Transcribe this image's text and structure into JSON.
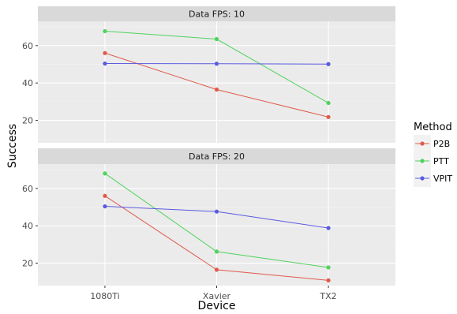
{
  "chart_data": {
    "type": "line",
    "xlabel": "Device",
    "ylabel": "Success",
    "categories": [
      "1080Ti",
      "Xavier",
      "TX2"
    ],
    "y_ticks": [
      20,
      40,
      60
    ],
    "ylim": [
      8,
      73
    ],
    "grid": true,
    "legend": {
      "title": "Method",
      "placement": "right"
    },
    "colors": {
      "P2B": "#e05a4b",
      "PTT": "#4fd35c",
      "VPIT": "#5a5ae0"
    },
    "facets": [
      {
        "label": "Data FPS: 10",
        "series": [
          {
            "name": "P2B",
            "values": [
              56.0,
              36.5,
              21.8
            ]
          },
          {
            "name": "PTT",
            "values": [
              67.7,
              63.5,
              29.3
            ]
          },
          {
            "name": "VPIT",
            "values": [
              50.4,
              50.3,
              50.1
            ]
          }
        ]
      },
      {
        "label": "Data FPS: 20",
        "series": [
          {
            "name": "P2B",
            "values": [
              56.0,
              16.5,
              10.8
            ]
          },
          {
            "name": "PTT",
            "values": [
              68.0,
              26.2,
              17.7
            ]
          },
          {
            "name": "VPIT",
            "values": [
              50.4,
              47.6,
              38.8
            ]
          }
        ]
      }
    ]
  }
}
